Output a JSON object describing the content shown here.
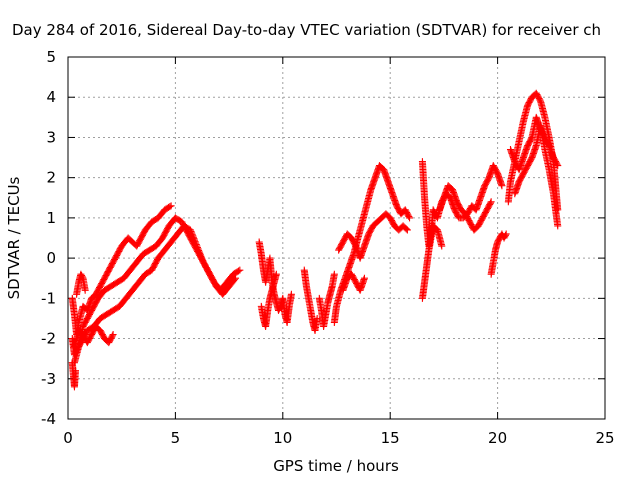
{
  "chart_data": {
    "type": "scatter",
    "title": "Day 284 of 2016, Sidereal Day-to-day VTEC variation (SDTVAR) for receiver ch",
    "xlabel": "GPS time / hours",
    "ylabel": "SDTVAR / TECUs",
    "xlim": [
      0,
      25
    ],
    "ylim": [
      -4,
      5
    ],
    "xticks": [
      "0",
      "5",
      "10",
      "15",
      "20",
      "25"
    ],
    "yticks": [
      "-4",
      "-3",
      "-2",
      "-1",
      "0",
      "1",
      "2",
      "3",
      "4",
      "5"
    ],
    "grid": true,
    "marker": "plus",
    "color": "#ff0000",
    "series": [
      {
        "x": [
          0.2,
          0.3,
          0.4,
          0.5,
          0.7,
          0.9,
          1.1,
          1.3,
          1.6,
          1.9,
          2.2,
          2.5,
          2.8,
          3.0,
          3.2,
          3.4,
          3.6,
          3.9,
          4.2,
          4.5,
          4.8
        ],
        "y": [
          -1.0,
          -1.4,
          -1.9,
          -1.6,
          -1.2,
          -1.3,
          -1.0,
          -0.9,
          -0.6,
          -0.3,
          0.0,
          0.3,
          0.5,
          0.4,
          0.3,
          0.5,
          0.7,
          0.9,
          1.0,
          1.2,
          1.3
        ]
      },
      {
        "x": [
          0.2,
          0.3,
          0.5,
          0.7,
          0.9,
          1.1,
          1.4,
          1.7,
          2.0,
          2.3,
          2.6,
          2.9,
          3.2,
          3.5,
          3.8,
          4.1,
          4.4,
          4.7,
          5.0,
          5.3,
          5.6,
          5.9,
          6.2,
          6.5,
          6.8,
          7.1,
          7.4,
          7.7,
          8.0
        ],
        "y": [
          -2.0,
          -2.4,
          -2.2,
          -1.7,
          -1.5,
          -1.3,
          -1.0,
          -0.8,
          -0.7,
          -0.6,
          -0.5,
          -0.3,
          -0.1,
          0.1,
          0.2,
          0.3,
          0.5,
          0.8,
          1.0,
          0.9,
          0.6,
          0.3,
          0.0,
          -0.3,
          -0.6,
          -0.8,
          -0.6,
          -0.4,
          -0.3
        ]
      },
      {
        "x": [
          0.3,
          0.5,
          0.7,
          0.9,
          1.2,
          1.5,
          1.8,
          2.1,
          2.4,
          2.7,
          3.0,
          3.3,
          3.6,
          3.9,
          4.2,
          4.5,
          4.8,
          5.1,
          5.4,
          5.7,
          6.0,
          6.3,
          6.6,
          6.9,
          7.2,
          7.5,
          7.8
        ],
        "y": [
          -2.6,
          -2.2,
          -2.0,
          -1.8,
          -1.7,
          -1.5,
          -1.4,
          -1.3,
          -1.2,
          -1.0,
          -0.8,
          -0.6,
          -0.4,
          -0.3,
          0.0,
          0.2,
          0.4,
          0.6,
          0.8,
          0.7,
          0.3,
          -0.1,
          -0.4,
          -0.7,
          -0.9,
          -0.7,
          -0.5
        ]
      },
      {
        "x": [
          0.2,
          0.25,
          0.3,
          0.35
        ],
        "y": [
          -2.6,
          -2.9,
          -3.2,
          -2.8
        ]
      },
      {
        "x": [
          0.3,
          0.5,
          0.7,
          0.9,
          1.1,
          1.3,
          1.5,
          1.7,
          1.9,
          2.1
        ],
        "y": [
          -2.2,
          -1.8,
          -1.9,
          -2.1,
          -1.9,
          -1.7,
          -1.8,
          -2.0,
          -2.1,
          -1.9
        ]
      },
      {
        "x": [
          0.4,
          0.5,
          0.6,
          0.7,
          0.8
        ],
        "y": [
          -0.9,
          -0.6,
          -0.4,
          -0.5,
          -0.8
        ]
      },
      {
        "x": [
          8.9,
          9.0,
          9.1,
          9.2,
          9.3,
          9.4,
          9.5,
          9.6,
          9.7,
          9.8,
          9.9,
          10.0,
          10.1,
          10.2,
          10.3,
          10.4
        ],
        "y": [
          0.4,
          0.1,
          -0.3,
          -0.6,
          -0.3,
          0.0,
          -0.6,
          -0.9,
          -1.1,
          -1.3,
          -1.2,
          -1.0,
          -1.4,
          -1.6,
          -1.2,
          -0.9
        ]
      },
      {
        "x": [
          9.0,
          9.1,
          9.2,
          9.3,
          9.4,
          9.5,
          9.6,
          9.7
        ],
        "y": [
          -1.2,
          -1.5,
          -1.7,
          -1.3,
          -1.0,
          -0.8,
          -0.6,
          -0.4
        ]
      },
      {
        "x": [
          11.0,
          11.1,
          11.2,
          11.3,
          11.4,
          11.5,
          11.6
        ],
        "y": [
          -0.3,
          -0.7,
          -1.0,
          -1.3,
          -1.6,
          -1.8,
          -1.5
        ]
      },
      {
        "x": [
          11.7,
          11.8,
          11.9,
          12.0,
          12.1,
          12.2,
          12.3,
          12.4
        ],
        "y": [
          -1.0,
          -1.3,
          -1.7,
          -1.4,
          -1.1,
          -0.9,
          -0.7,
          -0.4
        ]
      },
      {
        "x": [
          12.4,
          12.5,
          12.7,
          12.9,
          13.1,
          13.3,
          13.5,
          13.7,
          13.9,
          14.1,
          14.3,
          14.5,
          14.7,
          14.9,
          15.1,
          15.3,
          15.5,
          15.7,
          15.9
        ],
        "y": [
          -1.6,
          -1.2,
          -0.8,
          -0.5,
          -0.2,
          0.1,
          0.5,
          0.9,
          1.3,
          1.7,
          2.0,
          2.3,
          2.2,
          1.9,
          1.6,
          1.3,
          1.1,
          1.2,
          1.0
        ]
      },
      {
        "x": [
          12.6,
          12.8,
          13.0,
          13.2,
          13.4,
          13.6,
          13.8,
          14.0,
          14.2,
          14.4,
          14.6,
          14.8,
          15.0,
          15.2,
          15.4,
          15.6,
          15.8
        ],
        "y": [
          0.2,
          0.4,
          0.6,
          0.5,
          0.3,
          0.0,
          0.3,
          0.6,
          0.8,
          0.9,
          1.0,
          1.1,
          1.0,
          0.8,
          0.7,
          0.8,
          0.7
        ]
      },
      {
        "x": [
          12.8,
          13.0,
          13.2,
          13.4,
          13.6,
          13.8
        ],
        "y": [
          -0.8,
          -0.5,
          -0.4,
          -0.6,
          -0.8,
          -0.5
        ]
      },
      {
        "x": [
          16.5,
          16.6,
          16.7,
          16.8,
          16.9,
          17.0,
          17.2,
          17.4,
          17.6,
          17.8,
          18.0,
          18.2,
          18.4,
          18.6,
          18.8,
          19.0,
          19.2,
          19.4,
          19.6,
          19.8,
          20.0,
          20.2
        ],
        "y": [
          2.4,
          1.5,
          0.8,
          0.3,
          0.6,
          1.2,
          1.0,
          1.4,
          1.6,
          1.5,
          1.2,
          1.0,
          1.0,
          1.1,
          1.3,
          1.2,
          1.5,
          1.8,
          2.0,
          2.3,
          2.1,
          1.8
        ]
      },
      {
        "x": [
          16.5,
          16.6,
          16.7,
          16.8,
          16.9,
          17.0,
          17.2,
          17.4
        ],
        "y": [
          -1.0,
          -0.6,
          -0.2,
          0.2,
          0.5,
          0.8,
          0.7,
          0.3
        ]
      },
      {
        "x": [
          17.3,
          17.5,
          17.7,
          17.9,
          18.1,
          18.3,
          18.5,
          18.7,
          18.9,
          19.1,
          19.3,
          19.5,
          19.7
        ],
        "y": [
          1.2,
          1.5,
          1.8,
          1.7,
          1.4,
          1.2,
          1.1,
          0.9,
          0.7,
          0.8,
          1.0,
          1.2,
          1.4
        ]
      },
      {
        "x": [
          19.7,
          19.8,
          19.9,
          20.0,
          20.1,
          20.2,
          20.3,
          20.4
        ],
        "y": [
          -0.4,
          -0.1,
          0.2,
          0.4,
          0.5,
          0.6,
          0.5,
          0.6
        ]
      },
      {
        "x": [
          20.5,
          20.6,
          20.8,
          21.0,
          21.2,
          21.4,
          21.6,
          21.8,
          22.0,
          22.2,
          22.4,
          22.6,
          22.7,
          22.8
        ],
        "y": [
          1.4,
          1.9,
          2.4,
          2.9,
          3.4,
          3.8,
          4.0,
          4.1,
          3.9,
          3.5,
          3.0,
          2.4,
          1.8,
          1.2
        ]
      },
      {
        "x": [
          20.6,
          20.8,
          21.0,
          21.2,
          21.4,
          21.6,
          21.8,
          22.0,
          22.2,
          22.4,
          22.6,
          22.8
        ],
        "y": [
          2.7,
          2.4,
          2.2,
          2.5,
          2.8,
          3.0,
          3.5,
          3.2,
          3.0,
          2.8,
          2.5,
          2.3
        ]
      },
      {
        "x": [
          20.8,
          21.0,
          21.2,
          21.4,
          21.6,
          21.8,
          22.0,
          22.2,
          22.4,
          22.6,
          22.8
        ],
        "y": [
          1.6,
          1.9,
          2.1,
          2.3,
          2.5,
          2.8,
          3.3,
          2.7,
          2.2,
          1.6,
          0.8
        ]
      }
    ]
  }
}
